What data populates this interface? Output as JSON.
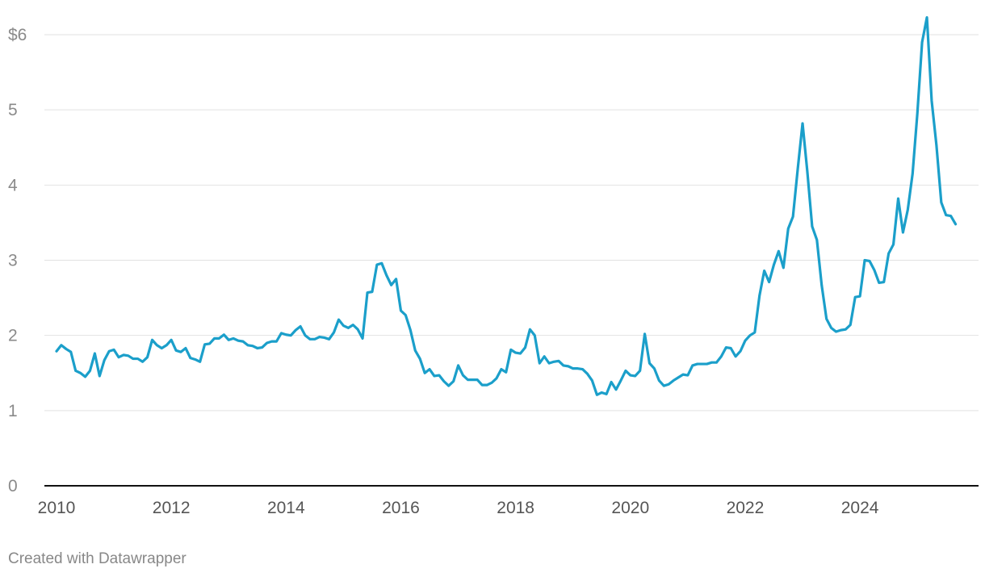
{
  "footer": {
    "credit": "Created with Datawrapper"
  },
  "colors": {
    "line": "#1b9fca",
    "grid": "#e2e2e2",
    "baseline": "#111111",
    "tick_text": "#8a8a8a",
    "x_tick_text": "#555555"
  },
  "chart_data": {
    "type": "line",
    "title": "",
    "xlabel": "",
    "ylabel": "",
    "xlim": [
      2010,
      2025.75
    ],
    "ylim": [
      0,
      6
    ],
    "grid": true,
    "legend": "none",
    "x_ticks": [
      2010,
      2012,
      2014,
      2016,
      2018,
      2020,
      2022,
      2024
    ],
    "x_tick_labels": [
      "2010",
      "2012",
      "2014",
      "2016",
      "2018",
      "2020",
      "2022",
      "2024"
    ],
    "y_ticks": [
      0,
      1,
      2,
      3,
      4,
      5,
      6
    ],
    "y_tick_labels": [
      "0",
      "1",
      "2",
      "3",
      "4",
      "5",
      "$6"
    ],
    "series": [
      {
        "x": [
          2010.0,
          2010.083,
          2010.167,
          2010.25,
          2010.333,
          2010.417,
          2010.5,
          2010.583,
          2010.667,
          2010.75,
          2010.833,
          2010.917,
          2011.0,
          2011.083,
          2011.167,
          2011.25,
          2011.333,
          2011.417,
          2011.5,
          2011.583,
          2011.667,
          2011.75,
          2011.833,
          2011.917,
          2012.0,
          2012.083,
          2012.167,
          2012.25,
          2012.333,
          2012.417,
          2012.5,
          2012.583,
          2012.667,
          2012.75,
          2012.833,
          2012.917,
          2013.0,
          2013.083,
          2013.167,
          2013.25,
          2013.333,
          2013.417,
          2013.5,
          2013.583,
          2013.667,
          2013.75,
          2013.833,
          2013.917,
          2014.0,
          2014.083,
          2014.167,
          2014.25,
          2014.333,
          2014.417,
          2014.5,
          2014.583,
          2014.667,
          2014.75,
          2014.833,
          2014.917,
          2015.0,
          2015.083,
          2015.167,
          2015.25,
          2015.333,
          2015.417,
          2015.5,
          2015.583,
          2015.667,
          2015.75,
          2015.833,
          2015.917,
          2016.0,
          2016.083,
          2016.167,
          2016.25,
          2016.333,
          2016.417,
          2016.5,
          2016.583,
          2016.667,
          2016.75,
          2016.833,
          2016.917,
          2017.0,
          2017.083,
          2017.167,
          2017.25,
          2017.333,
          2017.417,
          2017.5,
          2017.583,
          2017.667,
          2017.75,
          2017.833,
          2017.917,
          2018.0,
          2018.083,
          2018.167,
          2018.25,
          2018.333,
          2018.417,
          2018.5,
          2018.583,
          2018.667,
          2018.75,
          2018.833,
          2018.917,
          2019.0,
          2019.083,
          2019.167,
          2019.25,
          2019.333,
          2019.417,
          2019.5,
          2019.583,
          2019.667,
          2019.75,
          2019.833,
          2019.917,
          2020.0,
          2020.083,
          2020.167,
          2020.25,
          2020.333,
          2020.417,
          2020.5,
          2020.583,
          2020.667,
          2020.75,
          2020.833,
          2020.917,
          2021.0,
          2021.083,
          2021.167,
          2021.25,
          2021.333,
          2021.417,
          2021.5,
          2021.583,
          2021.667,
          2021.75,
          2021.833,
          2021.917,
          2022.0,
          2022.083,
          2022.167,
          2022.25,
          2022.333,
          2022.417,
          2022.5,
          2022.583,
          2022.667,
          2022.75,
          2022.833,
          2022.917,
          2023.0,
          2023.083,
          2023.167,
          2023.25,
          2023.333,
          2023.417,
          2023.5,
          2023.583,
          2023.667,
          2023.75,
          2023.833,
          2023.917,
          2024.0,
          2024.083,
          2024.167,
          2024.25,
          2024.333,
          2024.417,
          2024.5,
          2024.583,
          2024.667,
          2024.75,
          2024.833,
          2024.917,
          2025.0,
          2025.083,
          2025.167,
          2025.25,
          2025.333,
          2025.417,
          2025.5,
          2025.583,
          2025.667
        ],
        "values": [
          1.79,
          1.87,
          1.82,
          1.78,
          1.53,
          1.5,
          1.45,
          1.53,
          1.76,
          1.46,
          1.67,
          1.79,
          1.81,
          1.71,
          1.74,
          1.73,
          1.69,
          1.69,
          1.65,
          1.71,
          1.94,
          1.87,
          1.83,
          1.87,
          1.94,
          1.8,
          1.78,
          1.83,
          1.7,
          1.68,
          1.65,
          1.88,
          1.89,
          1.96,
          1.96,
          2.01,
          1.94,
          1.96,
          1.93,
          1.92,
          1.87,
          1.86,
          1.83,
          1.84,
          1.9,
          1.92,
          1.92,
          2.03,
          2.01,
          2.0,
          2.07,
          2.12,
          2.0,
          1.95,
          1.95,
          1.98,
          1.97,
          1.95,
          2.04,
          2.21,
          2.13,
          2.1,
          2.14,
          2.08,
          1.96,
          2.57,
          2.58,
          2.94,
          2.96,
          2.8,
          2.67,
          2.75,
          2.33,
          2.27,
          2.07,
          1.8,
          1.69,
          1.5,
          1.55,
          1.46,
          1.47,
          1.39,
          1.33,
          1.39,
          1.6,
          1.47,
          1.41,
          1.41,
          1.41,
          1.34,
          1.34,
          1.37,
          1.43,
          1.55,
          1.51,
          1.81,
          1.77,
          1.76,
          1.84,
          2.08,
          2.0,
          1.63,
          1.72,
          1.63,
          1.65,
          1.66,
          1.6,
          1.59,
          1.56,
          1.56,
          1.55,
          1.49,
          1.4,
          1.21,
          1.24,
          1.22,
          1.38,
          1.28,
          1.4,
          1.53,
          1.47,
          1.46,
          1.53,
          2.02,
          1.63,
          1.56,
          1.4,
          1.33,
          1.35,
          1.4,
          1.44,
          1.48,
          1.47,
          1.6,
          1.62,
          1.62,
          1.62,
          1.64,
          1.64,
          1.72,
          1.84,
          1.83,
          1.72,
          1.79,
          1.93,
          2.0,
          2.04,
          2.53,
          2.86,
          2.71,
          2.94,
          3.12,
          2.9,
          3.42,
          3.58,
          4.22,
          4.82,
          4.18,
          3.45,
          3.27,
          2.67,
          2.22,
          2.1,
          2.05,
          2.07,
          2.08,
          2.14,
          2.51,
          2.52,
          3.0,
          2.99,
          2.87,
          2.7,
          2.71,
          3.09,
          3.21,
          3.82,
          3.37,
          3.67,
          4.15,
          4.95,
          5.9,
          6.23,
          5.12,
          4.53,
          3.77,
          3.6,
          3.59,
          3.48
        ]
      }
    ]
  }
}
